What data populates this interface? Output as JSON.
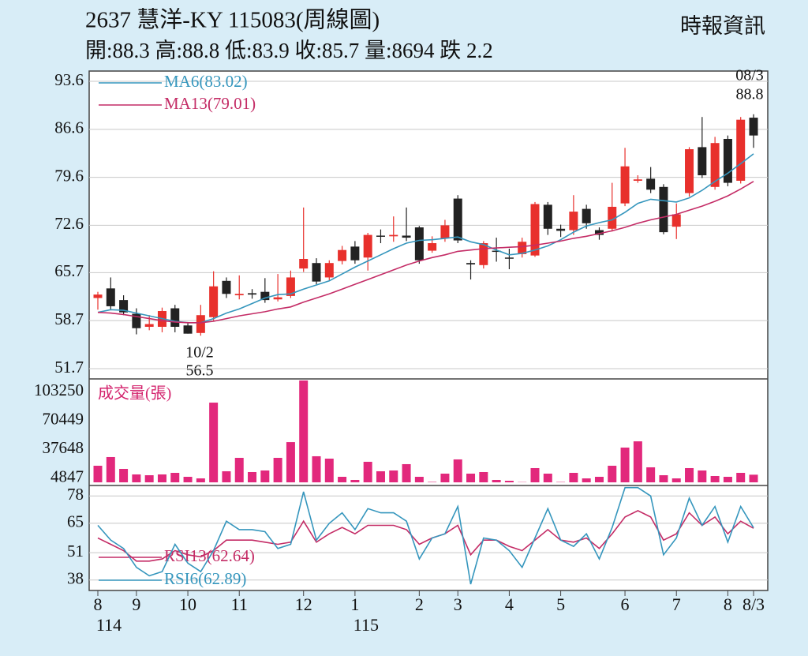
{
  "header": {
    "title": "2637  慧洋-KY 115083(周線圖)",
    "subtitle": "開:88.3 高:88.8 低:83.9 收:85.7 量:8694 跌 2.2",
    "source": "時報資訊"
  },
  "chart_data": [
    {
      "type": "candlestick",
      "up_color": "#e8302c",
      "down_color": "#222222",
      "annotations": [
        "08/3",
        "88.8",
        "10/2",
        "56.5"
      ],
      "ylim": [
        50.2,
        95.1
      ],
      "yticks": [
        93.6,
        86.6,
        79.6,
        72.6,
        65.7,
        58.7,
        51.7
      ],
      "grid": true,
      "open": [
        62.0,
        63.4,
        61.7,
        59.7,
        57.8,
        57.8,
        60.5,
        58.0,
        56.9,
        59.2,
        64.5,
        62.4,
        62.7,
        62.9,
        61.8,
        62.3,
        66.3,
        67.1,
        65.0,
        67.4,
        69.5,
        67.9,
        71.1,
        71.0,
        71.1,
        72.3,
        68.9,
        70.7,
        76.5,
        67.1,
        66.8,
        68.9,
        67.9,
        68.4,
        68.2,
        75.6,
        72.1,
        71.9,
        75.0,
        71.9,
        72.1,
        75.8,
        79.1,
        79.4,
        78.2,
        72.4,
        77.3,
        84.0,
        78.2,
        85.2,
        79.1,
        88.3
      ],
      "high": [
        62.9,
        65.0,
        62.4,
        60.5,
        59.5,
        60.6,
        61.0,
        58.5,
        61.0,
        65.9,
        65.0,
        65.3,
        63.3,
        64.9,
        65.5,
        66.0,
        75.2,
        67.8,
        67.5,
        69.6,
        70.3,
        71.5,
        72.0,
        73.9,
        75.2,
        72.5,
        71.0,
        73.4,
        77.0,
        67.5,
        70.3,
        70.8,
        69.2,
        70.8,
        76.0,
        76.0,
        72.7,
        77.0,
        75.6,
        72.3,
        78.8,
        83.9,
        79.9,
        81.1,
        78.6,
        75.8,
        84.0,
        88.4,
        85.5,
        85.7,
        88.4,
        88.8
      ],
      "low": [
        60.3,
        60.3,
        59.5,
        56.7,
        57.3,
        57.0,
        57.0,
        56.8,
        56.5,
        58.7,
        62.0,
        61.8,
        61.9,
        61.3,
        61.5,
        62.0,
        65.8,
        64.0,
        64.6,
        66.9,
        67.0,
        66.0,
        70.0,
        70.2,
        70.3,
        67.0,
        68.6,
        70.2,
        70.0,
        64.7,
        66.3,
        67.3,
        66.2,
        67.9,
        68.0,
        71.2,
        70.9,
        71.2,
        72.1,
        70.5,
        71.7,
        75.4,
        78.8,
        77.3,
        71.3,
        70.6,
        76.8,
        79.5,
        77.8,
        78.3,
        78.7,
        83.9
      ],
      "close": [
        62.5,
        60.8,
        59.9,
        57.6,
        58.2,
        60.1,
        57.8,
        56.8,
        59.5,
        63.7,
        62.6,
        62.6,
        62.5,
        61.7,
        62.1,
        65.0,
        67.7,
        64.4,
        67.1,
        69.0,
        67.5,
        71.2,
        71.0,
        71.2,
        70.8,
        67.5,
        70.0,
        72.6,
        70.4,
        66.9,
        70.0,
        68.8,
        67.8,
        70.2,
        75.7,
        72.1,
        71.8,
        74.6,
        72.9,
        71.2,
        75.3,
        81.2,
        79.3,
        77.8,
        71.6,
        74.2,
        83.7,
        79.9,
        84.6,
        78.8,
        88.0,
        85.7
      ],
      "series": [
        {
          "name": "MA6(83.02)",
          "color": "#3596bd",
          "values": [
            59.9,
            60.3,
            60.2,
            59.8,
            59.4,
            59.0,
            58.6,
            58.4,
            58.4,
            59.0,
            59.8,
            60.4,
            61.2,
            62.0,
            62.5,
            62.6,
            63.3,
            63.9,
            64.5,
            65.5,
            66.5,
            67.4,
            68.3,
            69.2,
            70.0,
            70.4,
            70.5,
            70.7,
            70.9,
            70.2,
            69.8,
            69.0,
            68.3,
            68.5,
            69.0,
            69.6,
            70.5,
            71.6,
            72.5,
            73.0,
            73.4,
            74.5,
            75.8,
            76.4,
            76.2,
            76.0,
            76.6,
            77.7,
            79.0,
            80.2,
            81.6,
            83.02
          ]
        },
        {
          "name": "MA13(79.01)",
          "color": "#c42c66",
          "values": [
            59.9,
            59.8,
            59.6,
            59.3,
            59.0,
            58.7,
            58.5,
            58.4,
            58.4,
            58.6,
            59.0,
            59.4,
            59.7,
            60.0,
            60.4,
            60.7,
            61.4,
            62.0,
            62.6,
            63.3,
            64.0,
            64.7,
            65.4,
            66.1,
            66.8,
            67.4,
            67.9,
            68.3,
            68.8,
            69.0,
            69.2,
            69.3,
            69.4,
            69.5,
            69.7,
            70.0,
            70.3,
            70.7,
            71.0,
            71.4,
            71.8,
            72.3,
            72.9,
            73.4,
            73.8,
            74.2,
            74.8,
            75.4,
            76.1,
            76.9,
            77.9,
            79.01
          ]
        }
      ]
    },
    {
      "type": "bar",
      "label": "成交量(張)",
      "color": "#e2287c",
      "ylim": [
        0,
        117800
      ],
      "yticks": [
        103250,
        70449,
        37648,
        4847
      ],
      "values": [
        18900,
        28800,
        15300,
        9000,
        8100,
        9000,
        10800,
        6300,
        4500,
        90800,
        12600,
        27900,
        11700,
        13500,
        27900,
        45800,
        116000,
        29700,
        27000,
        6300,
        2700,
        23400,
        12600,
        13500,
        20700,
        6300,
        500,
        9900,
        26100,
        9900,
        11700,
        2700,
        1800,
        300,
        16200,
        9900,
        400,
        10800,
        4500,
        6300,
        18900,
        39600,
        46700,
        17100,
        8100,
        4500,
        16200,
        13500,
        7200,
        6300,
        10800,
        8694
      ]
    },
    {
      "type": "line",
      "ylim": [
        33,
        83
      ],
      "yticks": [
        78,
        65,
        51,
        38
      ],
      "grid": true,
      "categories": [
        "8",
        null,
        null,
        "9",
        null,
        null,
        null,
        "10",
        null,
        null,
        null,
        "11",
        null,
        null,
        null,
        null,
        "12",
        null,
        null,
        null,
        "1",
        null,
        null,
        null,
        null,
        "2",
        null,
        null,
        "3",
        null,
        null,
        null,
        "4",
        null,
        null,
        null,
        "5",
        null,
        null,
        null,
        null,
        "6",
        null,
        null,
        null,
        "7",
        null,
        null,
        null,
        "8",
        null,
        "8/3"
      ],
      "years": [
        "114",
        null,
        null,
        null,
        null,
        null,
        null,
        null,
        null,
        null,
        null,
        null,
        null,
        null,
        null,
        null,
        null,
        null,
        null,
        null,
        "115",
        null,
        null,
        null,
        null,
        null,
        null,
        null,
        null,
        null,
        null,
        null,
        null,
        null,
        null,
        null,
        null,
        null,
        null,
        null,
        null,
        null,
        null,
        null,
        null,
        null,
        null,
        null,
        null,
        null,
        null,
        null
      ],
      "series": [
        {
          "name": "RSI13(62.64)",
          "color": "#c42c66",
          "values": [
            58,
            55,
            52,
            47,
            47,
            48,
            52,
            50,
            49,
            52,
            57,
            57,
            57,
            56,
            55,
            56,
            66,
            56,
            60,
            63,
            60,
            64,
            64,
            64,
            62,
            55,
            58,
            60,
            64,
            50,
            57,
            57,
            54,
            52,
            57,
            62,
            57,
            56,
            58,
            53,
            60,
            68,
            71,
            68,
            57,
            60,
            70,
            64,
            68,
            60,
            66,
            62.64
          ]
        },
        {
          "name": "RSI6(62.89)",
          "color": "#3596bd",
          "values": [
            64,
            57,
            53,
            44,
            40,
            42,
            55,
            46,
            42,
            52,
            66,
            62,
            62,
            61,
            53,
            55,
            80,
            57,
            65,
            70,
            62,
            72,
            70,
            70,
            66,
            48,
            58,
            60,
            73,
            36,
            58,
            57,
            52,
            44,
            58,
            72,
            57,
            54,
            60,
            48,
            63,
            82,
            82,
            78,
            50,
            58,
            77,
            64,
            73,
            56,
            73,
            62.89
          ]
        }
      ]
    }
  ]
}
